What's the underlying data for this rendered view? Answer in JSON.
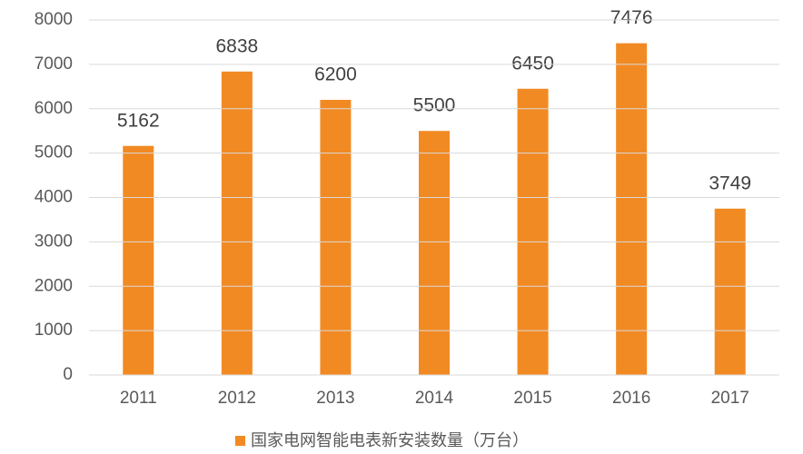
{
  "chart_data": {
    "type": "bar",
    "categories": [
      "2011",
      "2012",
      "2013",
      "2014",
      "2015",
      "2016",
      "2017"
    ],
    "series": [
      {
        "name": "国家电网智能电表新安装数量（万台）",
        "color": "#f28a24",
        "values": [
          5162,
          6838,
          6200,
          5500,
          6450,
          7476,
          3749
        ]
      }
    ],
    "ylim": [
      0,
      8000
    ],
    "yticks": [
      0,
      1000,
      2000,
      3000,
      4000,
      5000,
      6000,
      7000,
      8000
    ],
    "grid": true
  }
}
